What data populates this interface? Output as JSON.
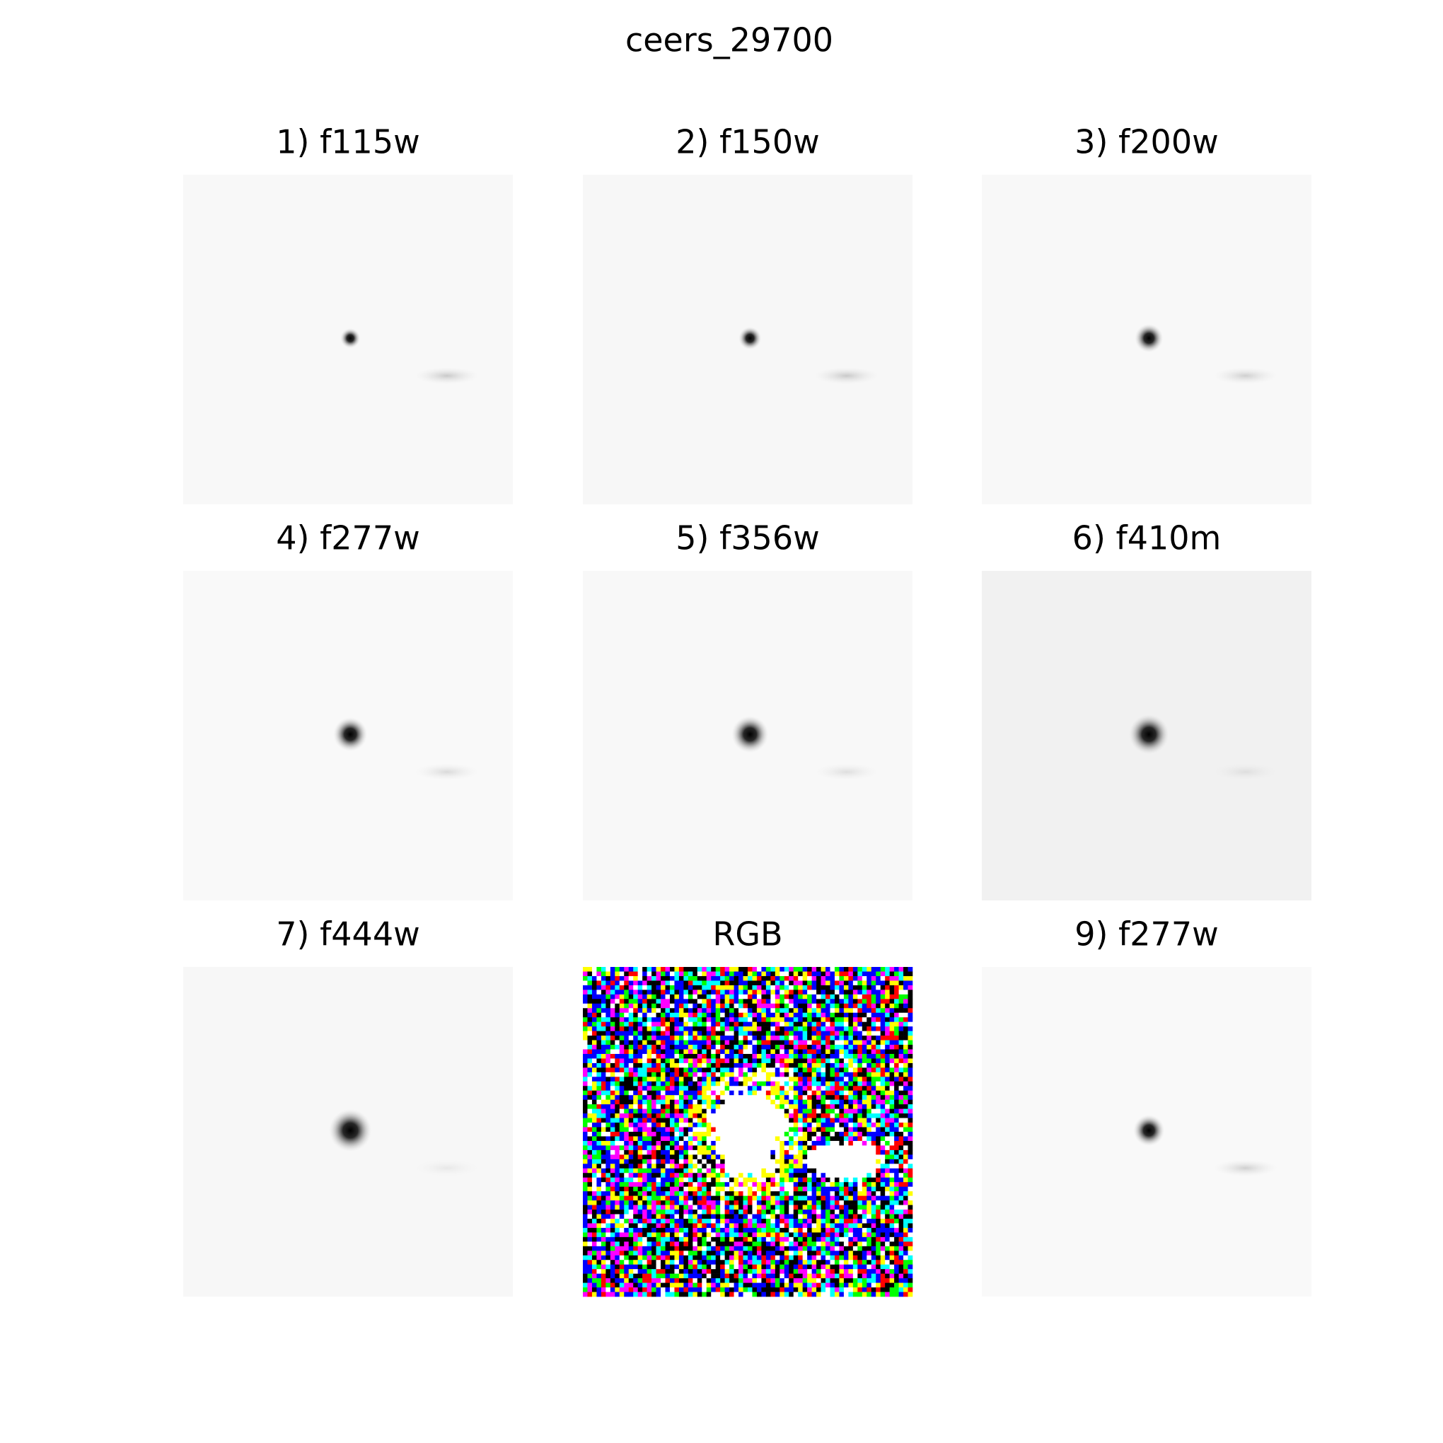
{
  "title": "ceers_29700",
  "panels": [
    {
      "label": "1) f115w"
    },
    {
      "label": "2) f150w"
    },
    {
      "label": "3) f200w"
    },
    {
      "label": "4) f277w"
    },
    {
      "label": "5) f356w"
    },
    {
      "label": "6) f410m"
    },
    {
      "label": "7) f444w"
    },
    {
      "label": "RGB"
    },
    {
      "label": "9) f277w"
    }
  ]
}
